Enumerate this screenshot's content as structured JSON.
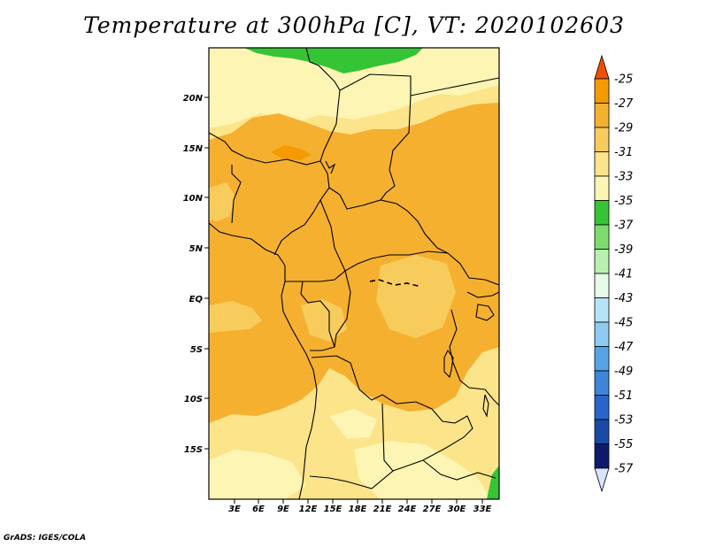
{
  "title": "Temperature at 300hPa [C], VT: 2020102603",
  "credit": "GrADS: IGES/COLA",
  "map": {
    "y_ticks": [
      "20N",
      "15N",
      "10N",
      "5N",
      "EQ",
      "5S",
      "10S",
      "15S"
    ],
    "x_ticks": [
      "3E",
      "6E",
      "9E",
      "12E",
      "15E",
      "18E",
      "21E",
      "24E",
      "27E",
      "30E",
      "33E"
    ],
    "lat_range": [
      -19,
      24.5
    ],
    "lon_range": [
      0.5,
      34.5
    ]
  },
  "colorbar": {
    "labels": [
      "-25",
      "-27",
      "-29",
      "-31",
      "-33",
      "-35",
      "-37",
      "-39",
      "-41",
      "-43",
      "-45",
      "-47",
      "-49",
      "-51",
      "-53",
      "-55",
      "-57"
    ],
    "colors": [
      "#f05000",
      "#f59a00",
      "#f5b030",
      "#f7cc5c",
      "#fce48a",
      "#fdf5b4",
      "#35c435",
      "#7ddc6e",
      "#b8f0b0",
      "#e6fce8",
      "#b7e3f7",
      "#8dcbf2",
      "#56a4e8",
      "#3d86da",
      "#2866cb",
      "#1a4aa8",
      "#0d1a6e",
      "#d8e4fb"
    ]
  },
  "chart_data": {
    "type": "heatmap",
    "title": "Temperature at 300hPa [C], VT: 2020102603",
    "variable": "Temperature at 300hPa",
    "units": "C",
    "valid_time": "2020102603",
    "contour_levels": [
      -57,
      -55,
      -53,
      -51,
      -49,
      -47,
      -45,
      -43,
      -41,
      -39,
      -37,
      -35,
      -33,
      -31,
      -29,
      -27,
      -25
    ],
    "x_range_deg_east": [
      0.5,
      34.5
    ],
    "y_range_deg_north": [
      -19,
      24.5
    ],
    "regions": [
      {
        "area": "far north Sahara strip (~22-24N)",
        "range": "-37 to -35"
      },
      {
        "area": "northern Sahel / Sahara (15-22N)",
        "range": "-35 to -31"
      },
      {
        "area": "Niger / Chad (~15N, 8-12E)",
        "range": "-29 to -27"
      },
      {
        "area": "central Africa and Gulf of Guinea (10S-13N)",
        "range": "-31 to -29"
      },
      {
        "area": "southern Africa (10S-19S)",
        "range": "-33 to -31"
      },
      {
        "area": "southeast corner (~17S, 34E)",
        "range": "-37 to -35"
      }
    ]
  }
}
